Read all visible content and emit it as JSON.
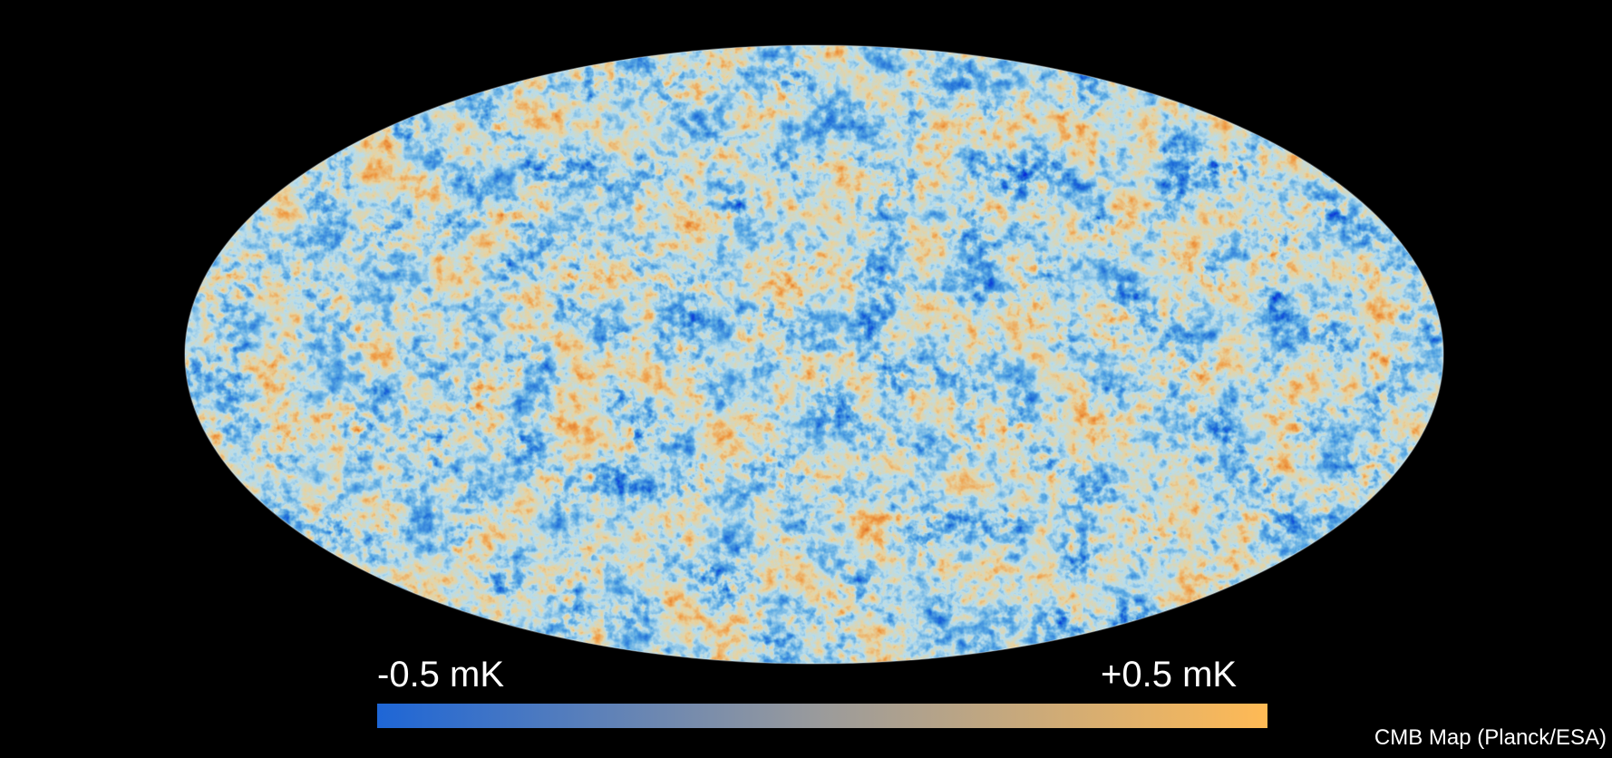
{
  "map": {
    "projection": "mollweide",
    "colormap": [
      "#0a2fd9",
      "#1f6fd8",
      "#5aa9e3",
      "#b9ddec",
      "#e8d3a0",
      "#f0a04a",
      "#d9651f",
      "#a8320f"
    ]
  },
  "colorbar": {
    "min_label": "-0.5 mK",
    "max_label": "+0.5 mK",
    "color_low": "#1e66d6",
    "color_mid": "#9b9b9b",
    "color_high": "#ffba55"
  },
  "credit": "CMB Map (Planck/ESA)"
}
